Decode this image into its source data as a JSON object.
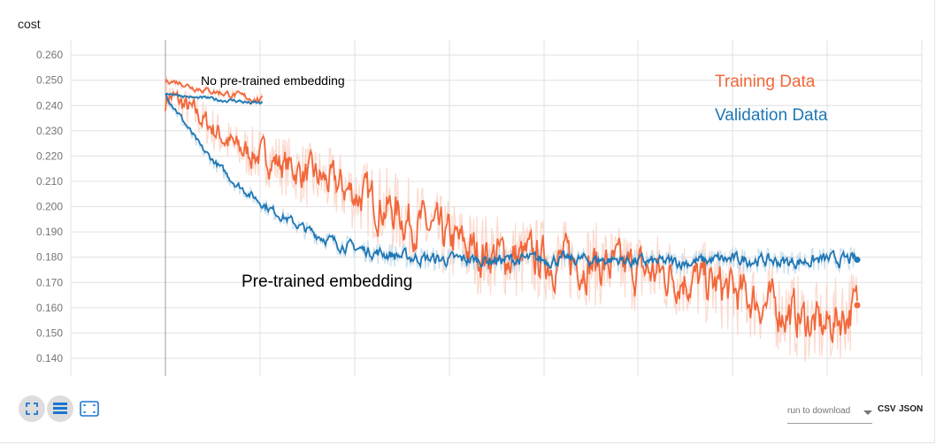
{
  "card": {
    "title": "cost"
  },
  "chart_data": {
    "type": "line",
    "title": "cost",
    "xlabel": "",
    "ylabel": "",
    "ylim": [
      0.133,
      0.266
    ],
    "y_ticks": [
      "0.260",
      "0.250",
      "0.240",
      "0.230",
      "0.220",
      "0.210",
      "0.200",
      "0.190",
      "0.180",
      "0.170",
      "0.160",
      "0.150",
      "0.140"
    ],
    "grid": true,
    "annotations": [
      "No pre-trained embedding",
      "Pre-trained embedding"
    ],
    "legend": {
      "placement": "top-right",
      "entries": [
        "Training Data",
        "Validation Data"
      ]
    },
    "series": [
      {
        "name": "Training Data",
        "color": "#f2673a",
        "run": "Pre-trained embedding",
        "x": [
          0,
          0.05,
          0.1,
          0.15,
          0.2,
          0.25,
          0.3,
          0.35,
          0.4,
          0.45,
          0.5,
          0.55,
          0.6,
          0.65,
          0.7,
          0.75,
          0.8,
          0.85,
          0.9,
          0.95,
          1.0
        ],
        "values": [
          0.245,
          0.235,
          0.223,
          0.219,
          0.213,
          0.208,
          0.202,
          0.195,
          0.188,
          0.182,
          0.18,
          0.179,
          0.178,
          0.176,
          0.174,
          0.172,
          0.168,
          0.163,
          0.158,
          0.152,
          0.161
        ]
      },
      {
        "name": "Validation Data",
        "color": "#1f77b4",
        "run": "Pre-trained embedding",
        "x": [
          0,
          0.05,
          0.1,
          0.15,
          0.2,
          0.25,
          0.3,
          0.35,
          0.4,
          0.45,
          0.5,
          0.55,
          0.6,
          0.65,
          0.7,
          0.75,
          0.8,
          0.85,
          0.9,
          0.95,
          1.0
        ],
        "values": [
          0.244,
          0.223,
          0.209,
          0.199,
          0.191,
          0.185,
          0.182,
          0.18,
          0.179,
          0.179,
          0.179,
          0.179,
          0.179,
          0.179,
          0.178,
          0.178,
          0.179,
          0.179,
          0.178,
          0.179,
          0.179
        ]
      },
      {
        "name": "Training Data",
        "color": "#f2673a",
        "run": "No pre-trained embedding",
        "x": [
          0,
          0.02,
          0.04,
          0.06,
          0.08,
          0.1,
          0.12,
          0.14
        ],
        "values": [
          0.25,
          0.249,
          0.247,
          0.246,
          0.245,
          0.244,
          0.243,
          0.242
        ]
      },
      {
        "name": "Validation Data",
        "color": "#1f77b4",
        "run": "No pre-trained embedding",
        "x": [
          0,
          0.02,
          0.04,
          0.06,
          0.08,
          0.1,
          0.12,
          0.14
        ],
        "values": [
          0.245,
          0.244,
          0.243,
          0.243,
          0.242,
          0.242,
          0.241,
          0.241
        ]
      }
    ]
  },
  "toolbar": {
    "expand_icon": "fullscreen-icon",
    "data_icon": "list-icon",
    "fit_icon": "fit-domain-icon"
  },
  "download": {
    "placeholder": "run to download",
    "csv": "CSV",
    "json": "JSON"
  },
  "colors": {
    "train": "#f2673a",
    "val": "#1f77b4",
    "train_raw": "#fbd0c1",
    "val_raw": "#bcd7ea",
    "grid": "#e0e0e0"
  }
}
